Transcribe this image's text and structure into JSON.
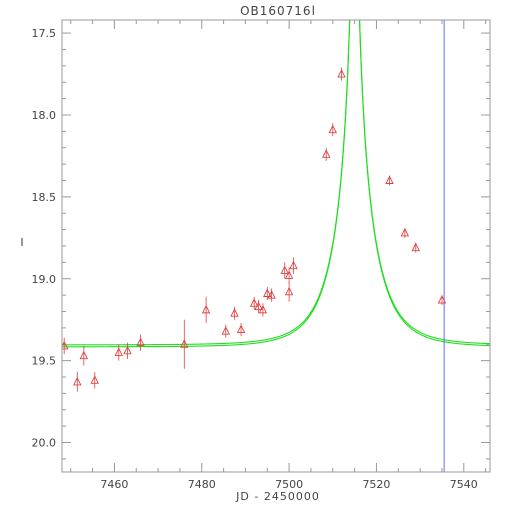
{
  "chart_data": {
    "type": "scatter",
    "title": "OB160716l",
    "xlabel": "JD - 2450000",
    "ylabel": "I",
    "xlim": [
      7448,
      7546
    ],
    "ylim": [
      17.42,
      20.18
    ],
    "y_inverted": true,
    "grid": false,
    "x_ticks": [
      7460,
      7480,
      7500,
      7520,
      7540
    ],
    "y_ticks": [
      "17.5",
      "18.0",
      "18.5",
      "19.0",
      "19.5",
      "20.0"
    ],
    "colors": {
      "data": "#e04040",
      "model": "#22dd22",
      "marker_line": "#6a6aee",
      "axis": "#999999",
      "text": "#444444"
    },
    "data_points": [
      {
        "x": 7448.5,
        "y": 19.41,
        "err": 0.05
      },
      {
        "x": 7451.5,
        "y": 19.63,
        "err": 0.06
      },
      {
        "x": 7453.0,
        "y": 19.47,
        "err": 0.06
      },
      {
        "x": 7455.5,
        "y": 19.62,
        "err": 0.05
      },
      {
        "x": 7461.0,
        "y": 19.45,
        "err": 0.05
      },
      {
        "x": 7463.0,
        "y": 19.44,
        "err": 0.05
      },
      {
        "x": 7466.0,
        "y": 19.39,
        "err": 0.05
      },
      {
        "x": 7476.0,
        "y": 19.4,
        "err": 0.15
      },
      {
        "x": 7481.0,
        "y": 19.19,
        "err": 0.08
      },
      {
        "x": 7485.5,
        "y": 19.32,
        "err": 0.04
      },
      {
        "x": 7487.5,
        "y": 19.21,
        "err": 0.04
      },
      {
        "x": 7489.0,
        "y": 19.31,
        "err": 0.04
      },
      {
        "x": 7492.0,
        "y": 19.15,
        "err": 0.04
      },
      {
        "x": 7493.0,
        "y": 19.17,
        "err": 0.04
      },
      {
        "x": 7494.0,
        "y": 19.19,
        "err": 0.04
      },
      {
        "x": 7495.0,
        "y": 19.09,
        "err": 0.04
      },
      {
        "x": 7496.0,
        "y": 19.1,
        "err": 0.04
      },
      {
        "x": 7499.0,
        "y": 18.95,
        "err": 0.05
      },
      {
        "x": 7500.0,
        "y": 18.98,
        "err": 0.05
      },
      {
        "x": 7500.0,
        "y": 19.08,
        "err": 0.06
      },
      {
        "x": 7501.0,
        "y": 18.92,
        "err": 0.05
      },
      {
        "x": 7508.5,
        "y": 18.24,
        "err": 0.04
      },
      {
        "x": 7510.0,
        "y": 18.09,
        "err": 0.04
      },
      {
        "x": 7512.0,
        "y": 17.75,
        "err": 0.04
      },
      {
        "x": 7523.0,
        "y": 18.4,
        "err": 0.03
      },
      {
        "x": 7526.5,
        "y": 18.72,
        "err": 0.03
      },
      {
        "x": 7529.0,
        "y": 18.81,
        "err": 0.03
      },
      {
        "x": 7535.0,
        "y": 19.13,
        "err": 0.03
      }
    ],
    "model": {
      "t0": 7515.0,
      "tE": 8.5,
      "u0": 0.042,
      "I_source": 19.59,
      "I_base": 19.41
    },
    "vertical_line_x": 7535.5
  }
}
